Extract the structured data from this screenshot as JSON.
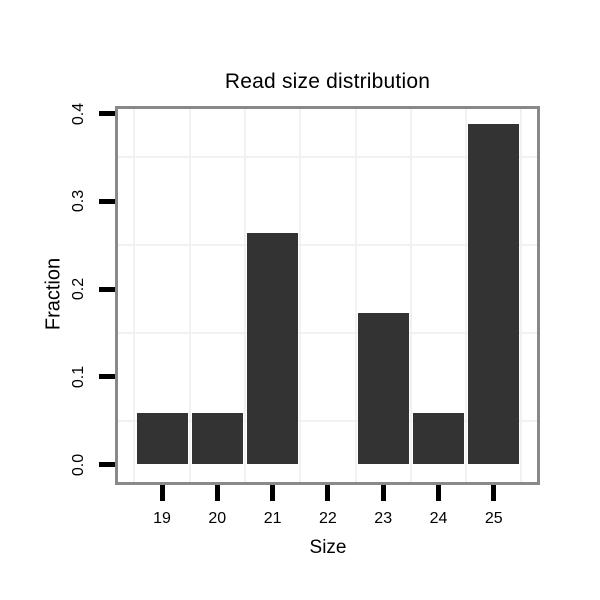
{
  "chart_data": {
    "type": "bar",
    "title": "Read size distribution",
    "xlabel": "Size",
    "ylabel": "Fraction",
    "categories": [
      "19",
      "20",
      "21",
      "22",
      "23",
      "24",
      "25"
    ],
    "values": [
      0.059,
      0.059,
      0.264,
      0,
      0.173,
      0.059,
      0.388
    ],
    "ylim": [
      -0.02,
      0.407
    ],
    "yticks": [
      0.0,
      0.1,
      0.2,
      0.3,
      0.4
    ],
    "ytick_labels": [
      "0.0",
      "0.1",
      "0.2",
      "0.3",
      "0.4"
    ],
    "grid_minor_y": [
      0.05,
      0.15,
      0.25,
      0.35
    ],
    "grid": "minor lines only, very light gray",
    "legend": "none",
    "bar_color": "#333333",
    "panel_border_color": "#898989",
    "grid_color": "#f1f1f1",
    "tick_color": "#000000",
    "background_color": "#ffffff"
  }
}
